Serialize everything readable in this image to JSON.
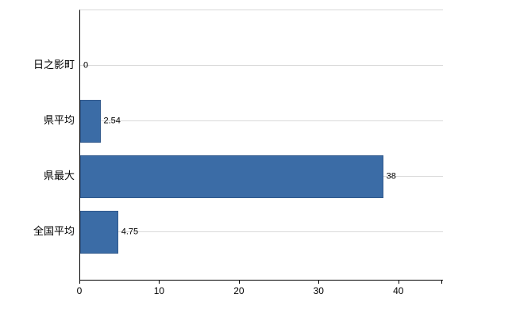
{
  "chart_data": {
    "type": "bar",
    "orientation": "horizontal",
    "title": "",
    "categories": [
      "日之影町",
      "県平均",
      "県最大",
      "全国平均"
    ],
    "values": [
      0,
      2.54,
      38,
      4.75
    ],
    "value_labels": [
      "0",
      "2.54",
      "38",
      "4.75"
    ],
    "x_ticks": [
      0,
      10,
      20,
      30,
      40
    ],
    "xlim": [
      0,
      45.5
    ],
    "grid": true,
    "legend": false,
    "colors": {
      "bar": "#3b6ca6",
      "bar_border": "#31598c",
      "grid": "#d9d9d9",
      "axis": "#000000",
      "text": "#000000",
      "background": "#ffffff"
    }
  }
}
